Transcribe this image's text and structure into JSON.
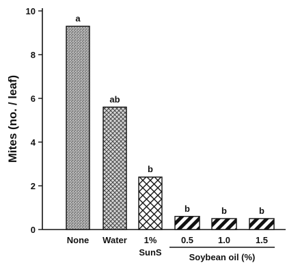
{
  "chart_data": {
    "type": "bar",
    "ylabel": "Mites (no. / leaf)",
    "xlabel": "",
    "ylim": [
      0,
      10
    ],
    "yticks": [
      0,
      2,
      4,
      6,
      8,
      10
    ],
    "categories": [
      {
        "label": "None",
        "label2": "",
        "value": 9.3,
        "significance": "a",
        "pattern": "stipple"
      },
      {
        "label": "Water",
        "label2": "",
        "value": 5.6,
        "significance": "ab",
        "pattern": "fine-crosshatch"
      },
      {
        "label": "1%",
        "label2": "SunS",
        "value": 2.4,
        "significance": "b",
        "pattern": "crosshatch"
      },
      {
        "label": "0.5",
        "label2": "",
        "value": 0.6,
        "significance": "b",
        "pattern": "diagonal"
      },
      {
        "label": "1.0",
        "label2": "",
        "value": 0.5,
        "significance": "b",
        "pattern": "diagonal"
      },
      {
        "label": "1.5",
        "label2": "",
        "value": 0.5,
        "significance": "b",
        "pattern": "diagonal"
      }
    ],
    "group_label": "Soybean oil (%)",
    "grid": false,
    "legend": "none"
  }
}
